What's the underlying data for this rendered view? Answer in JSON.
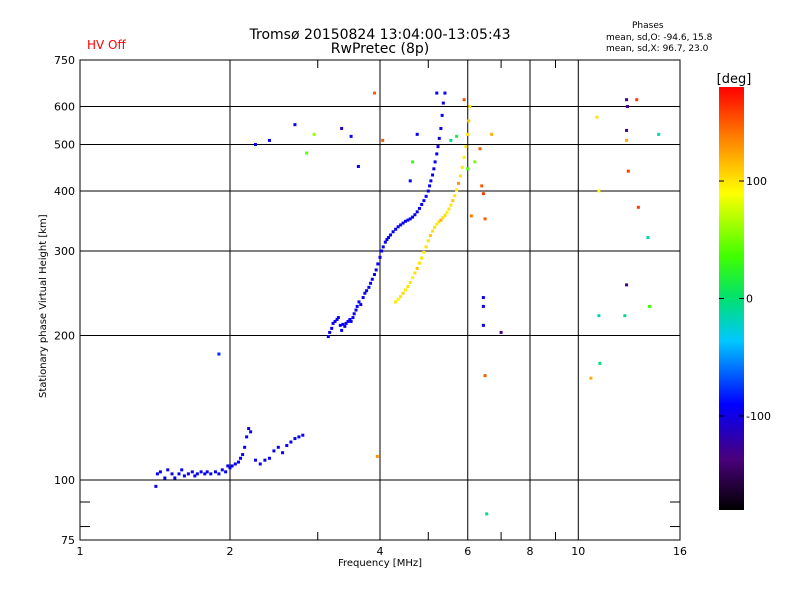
{
  "title_line1": "Tromsø 20150824 13:04:00-13:05:43",
  "title_line2": "RwPretec (8p)",
  "status": "HV Off",
  "phases": {
    "title": "Phases",
    "line_o": "mean, sd,O: -94.6, 15.8",
    "line_x": "mean, sd,X:  96.7, 23.0"
  },
  "colors": {
    "status": "#ff0000",
    "grid": "#000000"
  },
  "chart_data": {
    "type": "scatter",
    "xlabel": "Frequency [MHz]",
    "ylabel": "Stationary phase Virtual Height [km]",
    "x_scale": "log",
    "y_scale": "log",
    "xlim": [
      1,
      16
    ],
    "ylim": [
      75,
      750
    ],
    "x_ticks": [
      1,
      2,
      4,
      6,
      8,
      10,
      16
    ],
    "x_minor_ticks": [
      3,
      5,
      7,
      9
    ],
    "y_ticks": [
      75,
      100,
      200,
      300,
      400,
      500,
      600,
      750
    ],
    "y_minor_ticks": [
      80,
      90
    ],
    "grid": true,
    "colorbar": {
      "label": "[deg]",
      "range": [
        -180,
        180
      ],
      "ticks": [
        -100,
        0,
        100
      ]
    },
    "series": [
      {
        "group": "O-mode trace",
        "points": [
          [
            1.42,
            97,
            -95
          ],
          [
            1.43,
            103,
            -95
          ],
          [
            1.45,
            104,
            -95
          ],
          [
            1.48,
            101,
            -92
          ],
          [
            1.5,
            105,
            -95
          ],
          [
            1.53,
            103,
            -95
          ],
          [
            1.55,
            101,
            -95
          ],
          [
            1.58,
            103,
            -92
          ],
          [
            1.6,
            105,
            -95
          ],
          [
            1.62,
            102,
            -95
          ],
          [
            1.65,
            103,
            -95
          ],
          [
            1.68,
            104,
            -95
          ],
          [
            1.7,
            102,
            -95
          ],
          [
            1.72,
            103,
            -95
          ],
          [
            1.75,
            104,
            -95
          ],
          [
            1.78,
            103,
            -92
          ],
          [
            1.8,
            104,
            -95
          ],
          [
            1.83,
            103,
            -95
          ],
          [
            1.87,
            104,
            -95
          ],
          [
            1.9,
            103,
            -95
          ],
          [
            1.93,
            105,
            -95
          ],
          [
            1.96,
            104,
            -95
          ],
          [
            1.98,
            107,
            -95
          ],
          [
            2.0,
            106,
            -95
          ],
          [
            2.02,
            107,
            -95
          ],
          [
            2.05,
            108,
            -92
          ],
          [
            2.08,
            109,
            -95
          ],
          [
            2.1,
            111,
            -95
          ],
          [
            2.12,
            113,
            -95
          ],
          [
            2.14,
            117,
            -95
          ],
          [
            2.16,
            123,
            -95
          ],
          [
            2.18,
            128,
            -100
          ],
          [
            2.2,
            126,
            -95
          ],
          [
            2.25,
            110,
            -95
          ],
          [
            2.3,
            108,
            -95
          ],
          [
            2.35,
            110,
            -95
          ],
          [
            2.4,
            111,
            -95
          ],
          [
            2.45,
            115,
            -95
          ],
          [
            2.5,
            117,
            -95
          ],
          [
            2.55,
            114,
            -95
          ],
          [
            2.6,
            118,
            -95
          ],
          [
            2.65,
            120,
            -95
          ],
          [
            2.7,
            122,
            -95
          ],
          [
            2.75,
            123,
            -95
          ],
          [
            2.8,
            124,
            -95
          ],
          [
            3.15,
            199,
            -95
          ],
          [
            3.17,
            203,
            -95
          ],
          [
            3.2,
            207,
            -95
          ],
          [
            3.22,
            212,
            -92
          ],
          [
            3.25,
            214,
            -95
          ],
          [
            3.28,
            216,
            -95
          ],
          [
            3.3,
            218,
            -95
          ],
          [
            3.33,
            210,
            -95
          ],
          [
            3.35,
            205,
            -95
          ],
          [
            3.37,
            211,
            -95
          ],
          [
            3.4,
            209,
            -95
          ],
          [
            3.42,
            212,
            -95
          ],
          [
            3.45,
            214,
            -95
          ],
          [
            3.48,
            216,
            -92
          ],
          [
            3.5,
            214,
            -95
          ],
          [
            3.53,
            218,
            -95
          ],
          [
            3.55,
            222,
            -95
          ],
          [
            3.58,
            226,
            -95
          ],
          [
            3.6,
            230,
            -95
          ],
          [
            3.63,
            235,
            -95
          ],
          [
            3.66,
            232,
            -95
          ],
          [
            3.7,
            240,
            -95
          ],
          [
            3.73,
            245,
            -95
          ],
          [
            3.76,
            248,
            -95
          ],
          [
            3.8,
            252,
            -92
          ],
          [
            3.83,
            257,
            -95
          ],
          [
            3.86,
            262,
            -95
          ],
          [
            3.9,
            268,
            -95
          ],
          [
            3.93,
            274,
            -95
          ],
          [
            3.96,
            282,
            -95
          ],
          [
            4.0,
            291,
            -95
          ],
          [
            4.03,
            300,
            -95
          ],
          [
            4.06,
            306,
            -95
          ],
          [
            4.1,
            313,
            -95
          ],
          [
            4.13,
            317,
            -92
          ],
          [
            4.16,
            320,
            -95
          ],
          [
            4.2,
            324,
            -95
          ],
          [
            4.25,
            329,
            -95
          ],
          [
            4.3,
            333,
            -95
          ],
          [
            4.35,
            337,
            -95
          ],
          [
            4.4,
            340,
            -95
          ],
          [
            4.45,
            343,
            -95
          ],
          [
            4.5,
            346,
            -95
          ],
          [
            4.55,
            348,
            -92
          ],
          [
            4.6,
            350,
            -95
          ],
          [
            4.65,
            353,
            -95
          ],
          [
            4.7,
            357,
            -95
          ],
          [
            4.75,
            362,
            -95
          ],
          [
            4.8,
            368,
            -95
          ],
          [
            4.85,
            375,
            -95
          ],
          [
            4.9,
            382,
            -95
          ],
          [
            4.95,
            390,
            -95
          ],
          [
            5.0,
            400,
            -95
          ],
          [
            5.03,
            410,
            -92
          ],
          [
            5.06,
            420,
            -95
          ],
          [
            5.1,
            432,
            -95
          ],
          [
            5.13,
            445,
            -95
          ],
          [
            5.16,
            460,
            -95
          ],
          [
            5.2,
            478,
            -95
          ],
          [
            5.23,
            495,
            -95
          ],
          [
            5.26,
            515,
            -95
          ],
          [
            5.3,
            540,
            -95
          ],
          [
            5.33,
            575,
            -95
          ],
          [
            5.36,
            610,
            -95
          ],
          [
            5.4,
            640,
            -95
          ]
        ]
      },
      {
        "group": "X-mode trace",
        "points": [
          [
            4.3,
            235,
            100
          ],
          [
            4.35,
            238,
            95
          ],
          [
            4.4,
            241,
            100
          ],
          [
            4.45,
            245,
            105
          ],
          [
            4.5,
            249,
            95
          ],
          [
            4.55,
            253,
            100
          ],
          [
            4.6,
            258,
            100
          ],
          [
            4.65,
            264,
            95
          ],
          [
            4.7,
            270,
            100
          ],
          [
            4.75,
            276,
            110
          ],
          [
            4.8,
            283,
            100
          ],
          [
            4.85,
            290,
            100
          ],
          [
            4.9,
            298,
            95
          ],
          [
            4.95,
            306,
            100
          ],
          [
            5.0,
            315,
            100
          ],
          [
            5.05,
            323,
            110
          ],
          [
            5.1,
            330,
            100
          ],
          [
            5.15,
            336,
            100
          ],
          [
            5.2,
            341,
            95
          ],
          [
            5.25,
            345,
            100
          ],
          [
            5.3,
            348,
            120
          ],
          [
            5.35,
            352,
            100
          ],
          [
            5.4,
            356,
            100
          ],
          [
            5.45,
            361,
            95
          ],
          [
            5.5,
            367,
            100
          ],
          [
            5.55,
            374,
            100
          ],
          [
            5.6,
            382,
            110
          ],
          [
            5.65,
            391,
            100
          ],
          [
            5.7,
            402,
            100
          ],
          [
            5.75,
            415,
            130
          ],
          [
            5.8,
            430,
            100
          ],
          [
            5.85,
            448,
            100
          ],
          [
            5.9,
            470,
            95
          ],
          [
            5.95,
            495,
            100
          ],
          [
            6.0,
            525,
            100
          ],
          [
            6.03,
            560,
            110
          ],
          [
            6.06,
            600,
            100
          ]
        ]
      },
      {
        "group": "scattered echoes",
        "points": [
          [
            1.9,
            183,
            -80
          ],
          [
            2.25,
            500,
            -95
          ],
          [
            2.4,
            510,
            -95
          ],
          [
            2.7,
            550,
            -95
          ],
          [
            2.85,
            480,
            45
          ],
          [
            2.95,
            525,
            60
          ],
          [
            3.35,
            540,
            -115
          ],
          [
            3.5,
            520,
            -95
          ],
          [
            3.62,
            450,
            -95
          ],
          [
            3.9,
            640,
            150
          ],
          [
            3.95,
            112,
            130
          ],
          [
            4.05,
            510,
            150
          ],
          [
            4.6,
            420,
            -95
          ],
          [
            4.65,
            460,
            30
          ],
          [
            4.75,
            525,
            -95
          ],
          [
            5.2,
            640,
            -95
          ],
          [
            5.55,
            510,
            -5
          ],
          [
            5.7,
            520,
            15
          ],
          [
            5.9,
            620,
            155
          ],
          [
            6.0,
            445,
            40
          ],
          [
            6.1,
            355,
            140
          ],
          [
            6.2,
            460,
            50
          ],
          [
            6.35,
            490,
            150
          ],
          [
            6.4,
            410,
            150
          ],
          [
            6.45,
            395,
            160
          ],
          [
            6.5,
            350,
            150
          ],
          [
            6.45,
            240,
            -95
          ],
          [
            6.45,
            230,
            -95
          ],
          [
            6.45,
            210,
            -95
          ],
          [
            6.5,
            165,
            150
          ],
          [
            6.55,
            85,
            -5
          ],
          [
            7.0,
            203,
            -130
          ],
          [
            6.7,
            525,
            120
          ],
          [
            10.6,
            163,
            120
          ],
          [
            10.9,
            570,
            100
          ],
          [
            11.0,
            400,
            90
          ],
          [
            11.0,
            220,
            -20
          ],
          [
            11.05,
            175,
            -5
          ],
          [
            12.5,
            620,
            -130
          ],
          [
            12.55,
            600,
            -130
          ],
          [
            12.5,
            535,
            -130
          ],
          [
            12.5,
            510,
            120
          ],
          [
            12.6,
            440,
            160
          ],
          [
            12.5,
            255,
            -130
          ],
          [
            12.4,
            220,
            -10
          ],
          [
            13.2,
            370,
            160
          ],
          [
            13.8,
            320,
            -15
          ],
          [
            13.9,
            230,
            35
          ],
          [
            14.5,
            525,
            -20
          ],
          [
            13.1,
            620,
            160
          ]
        ]
      }
    ]
  }
}
